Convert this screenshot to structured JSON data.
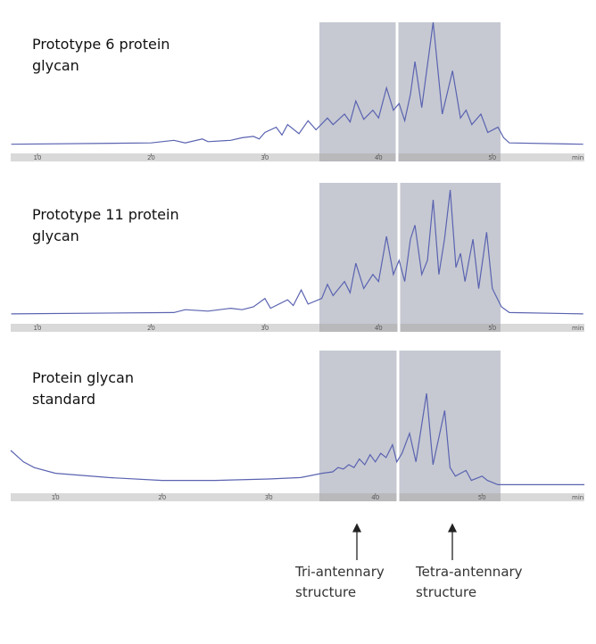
{
  "charts": {
    "chart_data": [
      {
        "type": "line",
        "title": "Prototype 6 protein glycan",
        "xlabel": "min",
        "xlim": [
          7.65,
          58.1
        ],
        "xticks": [
          10,
          20,
          30,
          40,
          50
        ],
        "ylim": [
          0,
          100
        ],
        "color": "#5a63b0",
        "x": [
          7.7,
          20,
          22,
          23,
          24.5,
          25,
          27,
          28,
          29,
          29.5,
          30,
          31,
          31.5,
          32,
          33,
          33.8,
          34.5,
          35.5,
          36,
          37,
          37.5,
          38,
          38.7,
          39.5,
          40,
          40.7,
          41.3,
          41.8,
          42.3,
          42.8,
          43.2,
          43.8,
          44.8,
          45.6,
          46.5,
          47.2,
          47.7,
          48.2,
          49,
          49.6,
          50.5,
          51,
          51.5,
          58
        ],
        "values": [
          7,
          8,
          10,
          8,
          11,
          9,
          10,
          12,
          13,
          11,
          16,
          20,
          14,
          22,
          15,
          25,
          18,
          27,
          22,
          30,
          24,
          40,
          26,
          33,
          27,
          50,
          33,
          38,
          25,
          45,
          70,
          35,
          100,
          30,
          63,
          27,
          33,
          22,
          30,
          16,
          20,
          12,
          8,
          7
        ]
      },
      {
        "type": "line",
        "title": "Prototype 11 protein glycan",
        "xlabel": "min",
        "xlim": [
          7.65,
          58.1
        ],
        "xticks": [
          10,
          20,
          30,
          40,
          50
        ],
        "ylim": [
          0,
          100
        ],
        "color": "#5a63b0",
        "x": [
          7.7,
          22,
          23,
          25,
          27,
          28,
          29,
          30,
          30.5,
          32,
          32.5,
          33.2,
          33.8,
          35,
          35.5,
          36,
          37,
          37.5,
          38,
          38.7,
          39.5,
          40,
          40.7,
          41.3,
          41.8,
          42.3,
          42.8,
          43.2,
          43.8,
          44.3,
          44.8,
          45.3,
          45.8,
          46.3,
          46.8,
          47.2,
          47.6,
          48.3,
          48.8,
          49.5,
          50,
          50.8,
          51.5,
          58
        ],
        "values": [
          7,
          8,
          10,
          9,
          11,
          10,
          12,
          18,
          11,
          17,
          13,
          24,
          14,
          18,
          28,
          20,
          30,
          22,
          43,
          25,
          35,
          30,
          62,
          35,
          45,
          30,
          60,
          70,
          35,
          45,
          88,
          35,
          60,
          95,
          40,
          50,
          30,
          60,
          25,
          65,
          25,
          12,
          8,
          7
        ]
      },
      {
        "type": "line",
        "title": "Protein glycan standard",
        "xlabel": "min",
        "xlim": [
          5.8,
          59.6
        ],
        "xticks": [
          10,
          20,
          30,
          40,
          50
        ],
        "ylim": [
          0,
          100
        ],
        "color": "#5a63b0",
        "x": [
          5.8,
          7,
          8,
          10,
          15,
          20,
          25,
          30,
          33,
          35,
          36,
          36.5,
          37,
          37.5,
          38,
          38.5,
          39,
          39.5,
          40,
          40.5,
          41,
          41.6,
          42,
          42.5,
          43.2,
          43.8,
          44.8,
          45.4,
          46.5,
          47,
          47.5,
          48.5,
          49,
          50,
          50.5,
          51.5,
          59.6
        ],
        "values": [
          30,
          22,
          18,
          14,
          11,
          9,
          9,
          10,
          11,
          14,
          15,
          18,
          17,
          20,
          18,
          24,
          20,
          27,
          22,
          28,
          25,
          34,
          22,
          28,
          42,
          22,
          70,
          20,
          58,
          18,
          12,
          16,
          9,
          12,
          9,
          6,
          6
        ]
      }
    ]
  },
  "annotations": [
    "Tri-antennary structure",
    "Tetra-antennary structure"
  ]
}
